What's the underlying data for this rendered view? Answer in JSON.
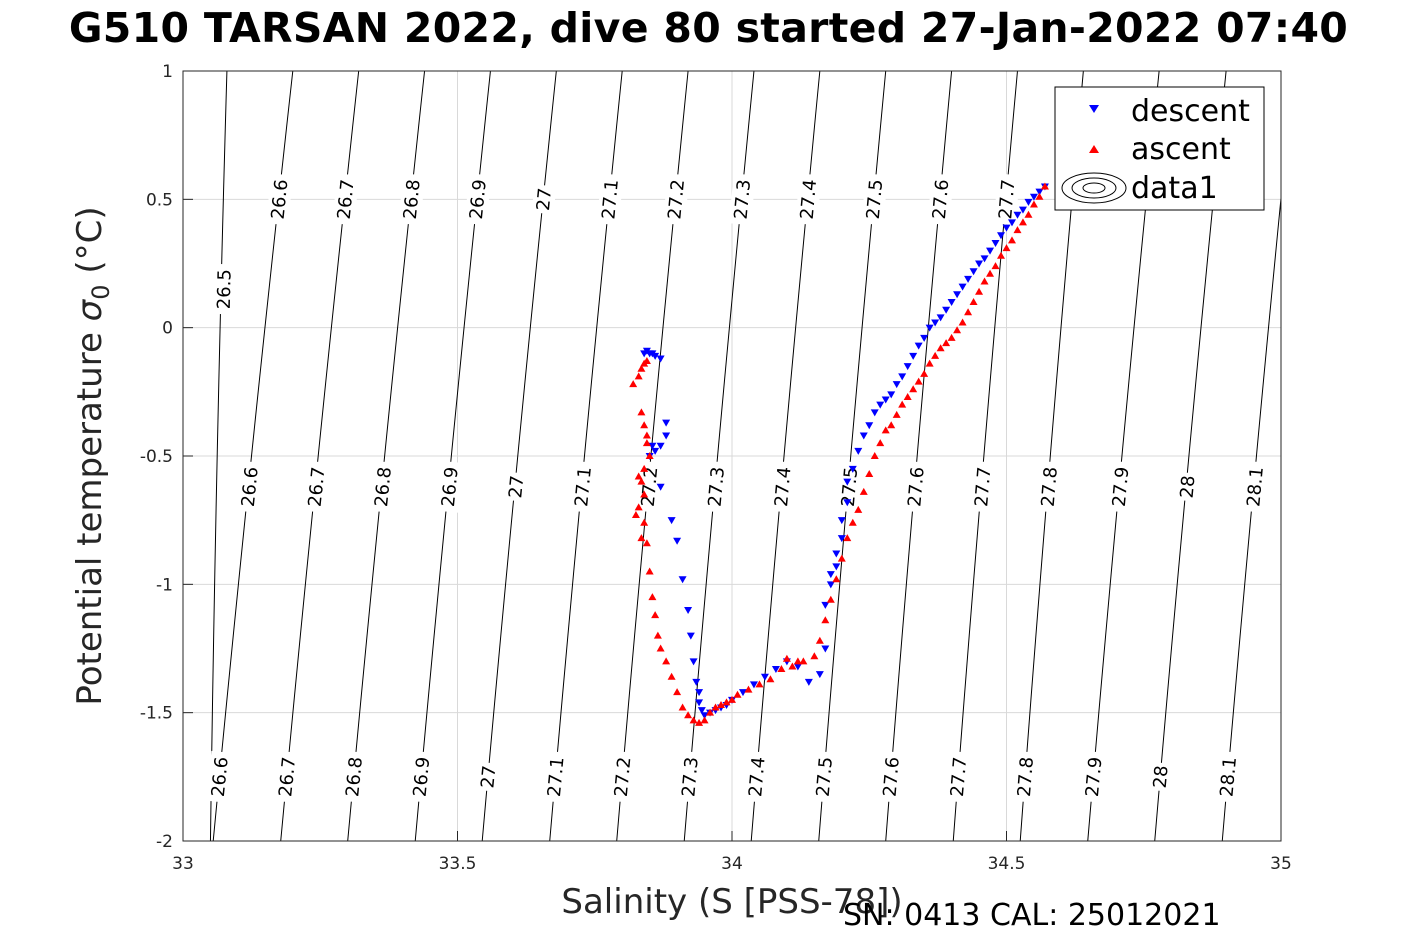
{
  "title": "G510 TARSAN 2022, dive 80 started 27-Jan-2022 07:40",
  "footer": "SN: 0413  CAL: 25012021",
  "chart_data": {
    "type": "scatter",
    "xlabel": "Salinity (S [PSS-78])",
    "ylabel": "Potential temperature σ₀ (°C)",
    "ylabel_main": "Potential temperature ",
    "ylabel_symbol": "σ",
    "ylabel_subscript": "0",
    "ylabel_unit": " (°C)",
    "xlim": [
      33,
      35
    ],
    "ylim": [
      -2,
      1
    ],
    "xticks": [
      33,
      33.5,
      34,
      34.5,
      35
    ],
    "xtick_labels": [
      "33",
      "33.5",
      "34",
      "34.5",
      "35"
    ],
    "yticks": [
      -2,
      -1.5,
      -1,
      -0.5,
      0,
      0.5,
      1
    ],
    "ytick_labels": [
      "-2",
      "-1.5",
      "-1",
      "-0.5",
      "0",
      "0.5",
      "1"
    ],
    "grid": true,
    "legend_position": "top-right",
    "series": [
      {
        "name": "descent",
        "marker": "triangle-down",
        "color": "#0000ff",
        "x": [
          33.84,
          33.845,
          33.85,
          33.855,
          33.86,
          33.87,
          33.88,
          33.855,
          33.85,
          33.86,
          33.87,
          33.88,
          33.87,
          33.89,
          33.9,
          33.91,
          33.92,
          33.925,
          33.93,
          33.935,
          33.94,
          33.94,
          33.945,
          33.95,
          33.96,
          33.97,
          33.98,
          33.99,
          34.0,
          34.02,
          34.04,
          34.06,
          34.08,
          34.1,
          34.12,
          34.14,
          34.16,
          34.17,
          34.17,
          34.18,
          34.18,
          34.19,
          34.19,
          34.2,
          34.2,
          34.21,
          34.21,
          34.22,
          34.23,
          34.24,
          34.25,
          34.26,
          34.27,
          34.28,
          34.29,
          34.3,
          34.31,
          34.32,
          34.33,
          34.34,
          34.35,
          34.36,
          34.37,
          34.38,
          34.39,
          34.4,
          34.41,
          34.42,
          34.43,
          34.44,
          34.45,
          34.46,
          34.47,
          34.48,
          34.49,
          34.5,
          34.51,
          34.52,
          34.53,
          34.54,
          34.55,
          34.56,
          34.57
        ],
        "y": [
          -0.1,
          -0.09,
          -0.1,
          -0.1,
          -0.11,
          -0.12,
          -0.37,
          -0.46,
          -0.5,
          -0.48,
          -0.46,
          -0.42,
          -0.62,
          -0.75,
          -0.83,
          -0.98,
          -1.1,
          -1.2,
          -1.3,
          -1.38,
          -1.42,
          -1.46,
          -1.49,
          -1.51,
          -1.5,
          -1.49,
          -1.48,
          -1.47,
          -1.45,
          -1.42,
          -1.39,
          -1.36,
          -1.33,
          -1.3,
          -1.32,
          -1.38,
          -1.35,
          -1.25,
          -1.08,
          -1.0,
          -0.96,
          -0.93,
          -0.88,
          -0.82,
          -0.75,
          -0.68,
          -0.6,
          -0.55,
          -0.48,
          -0.42,
          -0.38,
          -0.33,
          -0.3,
          -0.28,
          -0.26,
          -0.22,
          -0.19,
          -0.15,
          -0.11,
          -0.07,
          -0.04,
          0.0,
          0.02,
          0.04,
          0.07,
          0.1,
          0.13,
          0.16,
          0.19,
          0.22,
          0.25,
          0.27,
          0.3,
          0.33,
          0.36,
          0.39,
          0.41,
          0.44,
          0.46,
          0.49,
          0.51,
          0.53,
          0.55
        ]
      },
      {
        "name": "ascent",
        "marker": "triangle-up",
        "color": "#ff0000",
        "x": [
          33.82,
          33.83,
          33.835,
          33.84,
          33.845,
          33.835,
          33.84,
          33.845,
          33.83,
          33.825,
          33.835,
          33.84,
          33.85,
          33.845,
          33.84,
          33.835,
          33.83,
          33.84,
          33.845,
          33.85,
          33.855,
          33.86,
          33.865,
          33.87,
          33.88,
          33.89,
          33.9,
          33.91,
          33.92,
          33.93,
          33.94,
          33.95,
          33.96,
          33.97,
          33.98,
          33.99,
          34.0,
          34.01,
          34.03,
          34.05,
          34.07,
          34.09,
          34.1,
          34.11,
          34.12,
          34.13,
          34.15,
          34.16,
          34.17,
          34.18,
          34.19,
          34.2,
          34.21,
          34.22,
          34.23,
          34.24,
          34.25,
          34.26,
          34.27,
          34.28,
          34.29,
          34.3,
          34.31,
          34.32,
          34.33,
          34.34,
          34.35,
          34.36,
          34.37,
          34.38,
          34.39,
          34.4,
          34.41,
          34.42,
          34.43,
          34.44,
          34.45,
          34.46,
          34.47,
          34.48,
          34.49,
          34.5,
          34.51,
          34.52,
          34.53,
          34.54,
          34.55,
          34.56,
          34.57
        ],
        "y": [
          -0.22,
          -0.19,
          -0.16,
          -0.14,
          -0.13,
          -0.33,
          -0.38,
          -0.42,
          -0.58,
          -0.73,
          -0.82,
          -0.65,
          -0.5,
          -0.45,
          -0.55,
          -0.6,
          -0.7,
          -0.76,
          -0.84,
          -0.95,
          -1.05,
          -1.12,
          -1.2,
          -1.25,
          -1.3,
          -1.36,
          -1.42,
          -1.48,
          -1.51,
          -1.53,
          -1.54,
          -1.53,
          -1.5,
          -1.48,
          -1.47,
          -1.46,
          -1.45,
          -1.43,
          -1.41,
          -1.39,
          -1.37,
          -1.33,
          -1.29,
          -1.32,
          -1.3,
          -1.3,
          -1.28,
          -1.22,
          -1.14,
          -1.06,
          -0.98,
          -0.9,
          -0.82,
          -0.76,
          -0.71,
          -0.64,
          -0.57,
          -0.5,
          -0.45,
          -0.4,
          -0.38,
          -0.34,
          -0.3,
          -0.27,
          -0.24,
          -0.21,
          -0.18,
          -0.14,
          -0.11,
          -0.08,
          -0.06,
          -0.04,
          -0.01,
          0.02,
          0.06,
          0.1,
          0.14,
          0.18,
          0.21,
          0.24,
          0.28,
          0.31,
          0.34,
          0.38,
          0.41,
          0.44,
          0.48,
          0.51,
          0.55
        ]
      },
      {
        "name": "data1",
        "marker": "contour",
        "color": "#000000"
      }
    ],
    "contours": {
      "levels": [
        26.5,
        26.6,
        26.7,
        26.8,
        26.9,
        27,
        27.1,
        27.2,
        27.3,
        27.4,
        27.5,
        27.6,
        27.7,
        27.8,
        27.9,
        28,
        28.1
      ],
      "level_labels": [
        "26.5",
        "26.6",
        "26.7",
        "26.8",
        "26.9",
        "27",
        "27.1",
        "27.2",
        "27.3",
        "27.4",
        "27.5",
        "27.6",
        "27.7",
        "27.8",
        "27.9",
        "28",
        "28.1"
      ],
      "bottom_salinity": [
        null,
        33.055,
        33.178,
        33.3,
        33.423,
        33.545,
        33.668,
        33.79,
        33.913,
        34.035,
        34.158,
        34.28,
        34.403,
        34.525,
        34.648,
        34.77,
        34.893
      ],
      "top_salinity": [
        33.08,
        33.2,
        33.32,
        33.44,
        33.56,
        33.68,
        33.8,
        33.92,
        34.04,
        34.16,
        34.28,
        34.4,
        34.52,
        34.64,
        null,
        null,
        null
      ]
    }
  },
  "colors": {
    "descent": "#0000ff",
    "ascent": "#ff0000",
    "contour": "#000000",
    "grid": "#d9d9d9",
    "axes": "#262626"
  }
}
